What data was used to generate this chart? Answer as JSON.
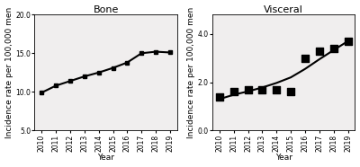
{
  "bone_years": [
    2010,
    2011,
    2012,
    2013,
    2014,
    2015,
    2016,
    2017,
    2018,
    2019
  ],
  "bone_values": [
    9.9,
    10.8,
    11.4,
    12.0,
    12.5,
    13.1,
    13.8,
    15.0,
    15.2,
    15.1
  ],
  "bone_ylim": [
    5.0,
    20.0
  ],
  "bone_yticks": [
    5.0,
    10.0,
    15.0,
    20.0
  ],
  "bone_title": "Bone",
  "visceral_years": [
    2010,
    2011,
    2012,
    2013,
    2014,
    2015,
    2016,
    2017,
    2018,
    2019
  ],
  "visceral_scatter": [
    1.4,
    1.6,
    1.7,
    1.7,
    1.7,
    1.6,
    3.0,
    3.3,
    3.4,
    3.7
  ],
  "visceral_line_y": [
    1.3,
    1.48,
    1.62,
    1.78,
    1.97,
    2.2,
    2.55,
    2.95,
    3.33,
    3.7
  ],
  "visceral_ylim": [
    0.0,
    4.8
  ],
  "visceral_yticks": [
    0.0,
    2.0,
    4.0
  ],
  "visceral_title": "Visceral",
  "xlabel": "Year",
  "ylabel": "Incidence rate per 100,000 men",
  "marker": "s",
  "markersize": 3.5,
  "linecolor": "black",
  "markercolor": "black",
  "linewidth": 1.5,
  "bg_color": "#f0eeee",
  "tick_fontsize": 5.5,
  "label_fontsize": 6.5,
  "title_fontsize": 8
}
